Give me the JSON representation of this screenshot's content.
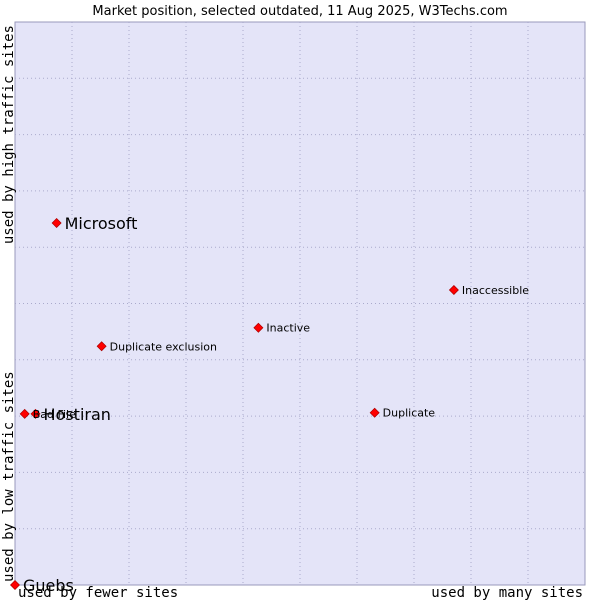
{
  "chart_data": {
    "type": "scatter",
    "title": "Market position, selected outdated, 11 Aug 2025, W3Techs.com",
    "xlabel_left": "used by fewer sites",
    "xlabel_right": "used by many sites",
    "ylabel_bottom": "used by low traffic sites",
    "ylabel_top": "used by high traffic sites",
    "xlim": [
      0,
      100
    ],
    "ylim": [
      0,
      100
    ],
    "grid": true,
    "marker_color": "#ff0000",
    "points": [
      {
        "name": "Microsoft",
        "x": 7.3,
        "y": 64.3,
        "emphasis": true
      },
      {
        "name": "Hostiran",
        "x": 3.6,
        "y": 30.4,
        "emphasis": true
      },
      {
        "name": "Guebs",
        "x": 0.0,
        "y": 0.0,
        "emphasis": true
      },
      {
        "name": "Bad File",
        "x": 1.7,
        "y": 30.4,
        "emphasis": false
      },
      {
        "name": "Inaccessible",
        "x": 77.0,
        "y": 52.4,
        "emphasis": false
      },
      {
        "name": "Inactive",
        "x": 42.7,
        "y": 45.7,
        "emphasis": false
      },
      {
        "name": "Duplicate exclusion",
        "x": 15.2,
        "y": 42.4,
        "emphasis": false
      },
      {
        "name": "Duplicate",
        "x": 63.1,
        "y": 30.6,
        "emphasis": false
      }
    ]
  },
  "colors": {
    "plot_background": "#e4e4f8",
    "grid": "#aaaacc",
    "marker": "#ff0000"
  }
}
